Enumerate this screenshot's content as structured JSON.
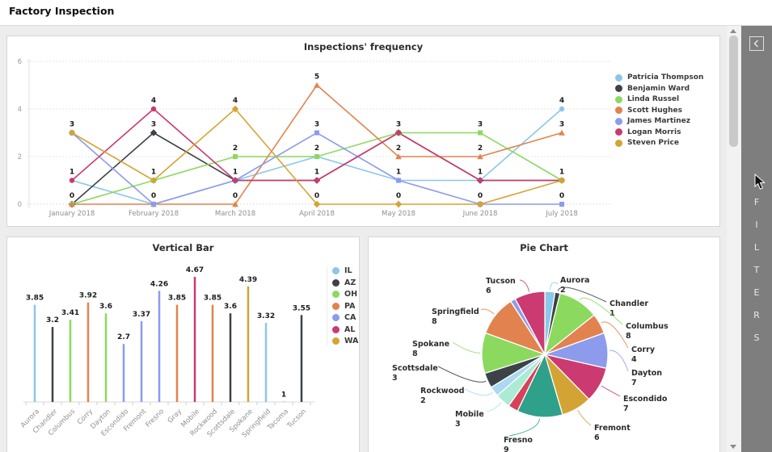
{
  "header": {
    "title": "Factory Inspection"
  },
  "filters_panel": {
    "label": "FILTERS",
    "collapse_icon": "chevron-left-icon",
    "bg_color": "#7e7e7e"
  },
  "scrollbar": {
    "up_icon": "up-arrow",
    "down_icon": "down-arrow"
  },
  "chart_data": [
    {
      "type": "line",
      "title": "Inspections' frequency",
      "x": [
        "January 2018",
        "February 2018",
        "March 2018",
        "April 2018",
        "May 2018",
        "June 2018",
        "July 2018"
      ],
      "ylim": [
        0,
        6
      ],
      "yticks": [
        0,
        2,
        4,
        6
      ],
      "grid": true,
      "legend_position": "right",
      "value_labels": true,
      "series": [
        {
          "name": "Patricia Thompson",
          "color": "#8AC7E8",
          "marker": "circle",
          "values": [
            1,
            0,
            1,
            2,
            1,
            1,
            4
          ]
        },
        {
          "name": "Benjamin Ward",
          "color": "#3D4248",
          "marker": "diamond",
          "values": [
            0,
            3,
            1,
            1,
            3,
            1,
            1
          ]
        },
        {
          "name": "Linda Russel",
          "color": "#8CD95F",
          "marker": "square",
          "values": [
            0,
            1,
            2,
            2,
            3,
            3,
            1
          ]
        },
        {
          "name": "Scott Hughes",
          "color": "#E2824E",
          "marker": "triangle",
          "values": [
            0,
            0,
            0,
            5,
            2,
            2,
            3
          ]
        },
        {
          "name": "James Martinez",
          "color": "#8C9BEC",
          "marker": "square",
          "values": [
            3,
            0,
            1,
            3,
            1,
            0,
            0
          ]
        },
        {
          "name": "Logan Morris",
          "color": "#CB3A70",
          "marker": "circle",
          "values": [
            1,
            4,
            1,
            1,
            3,
            1,
            1
          ]
        },
        {
          "name": "Steven Price",
          "color": "#D3A433",
          "marker": "diamond",
          "values": [
            3,
            1,
            4,
            0,
            0,
            0,
            1
          ]
        }
      ]
    },
    {
      "type": "bar",
      "title": "Vertical Bar",
      "categories": [
        "Aurora",
        "Chandler",
        "Columbus",
        "Corry",
        "Dayton",
        "Escondido",
        "Fremont",
        "Fresno",
        "Gray",
        "Mobile",
        "Rockwood",
        "Scottsdale",
        "Spokane",
        "Springfield",
        "Tacoma",
        "Tucson"
      ],
      "values": [
        3.85,
        3.2,
        3.41,
        3.92,
        3.6,
        2.7,
        3.37,
        4.26,
        3.85,
        4.67,
        3.85,
        3.6,
        4.39,
        3.32,
        1,
        3.55
      ],
      "states": [
        "IL",
        "AZ",
        "OH",
        "PA",
        "OH",
        "CA",
        "CA",
        "CA",
        "PA",
        "AL",
        "PA",
        "AZ",
        "WA",
        "IL",
        "WA",
        "AZ"
      ],
      "y_baseline": 1,
      "y_max": 4.67,
      "value_labels": true,
      "legend_position": "right",
      "legend": [
        {
          "name": "IL",
          "color": "#8AC7E8"
        },
        {
          "name": "AZ",
          "color": "#3D4248"
        },
        {
          "name": "OH",
          "color": "#8CD95F"
        },
        {
          "name": "PA",
          "color": "#E2824E"
        },
        {
          "name": "CA",
          "color": "#8C9BEC"
        },
        {
          "name": "AL",
          "color": "#CB3A70"
        },
        {
          "name": "WA",
          "color": "#D3A433"
        }
      ]
    },
    {
      "type": "pie",
      "title": "Pie Chart",
      "start_angle": 0,
      "direction": "clockwise",
      "slices": [
        {
          "label": "Aurora",
          "value": 2,
          "color": "#8AC7E8"
        },
        {
          "label": "Chandler",
          "value": 1,
          "color": "#3D4248"
        },
        {
          "label": "Columbus",
          "value": 8,
          "color": "#8CD95F"
        },
        {
          "label": "Corry",
          "value": 4,
          "color": "#E2824E"
        },
        {
          "label": "Dayton",
          "value": 7,
          "color": "#8C9BEC"
        },
        {
          "label": "Escondido",
          "value": 7,
          "color": "#CB3A70"
        },
        {
          "label": "Fremont",
          "value": 6,
          "color": "#D3A433"
        },
        {
          "label": "Fresno",
          "value": 9,
          "color": "#2FA08A"
        },
        {
          "label": "",
          "value": 2,
          "color": "#D64358"
        },
        {
          "label": "Mobile",
          "value": 3,
          "color": "#ABEBD3"
        },
        {
          "label": "Rockwood",
          "value": 2,
          "color": "#AAD9F1"
        },
        {
          "label": "Scottsdale",
          "value": 3,
          "color": "#3D4248"
        },
        {
          "label": "Spokane",
          "value": 8,
          "color": "#8CD95F"
        },
        {
          "label": "Springfield",
          "value": 8,
          "color": "#E2824E"
        },
        {
          "label": "",
          "value": 1,
          "color": "#8C9BEC"
        },
        {
          "label": "Tucson",
          "value": 6,
          "color": "#CB3A70"
        }
      ]
    }
  ]
}
